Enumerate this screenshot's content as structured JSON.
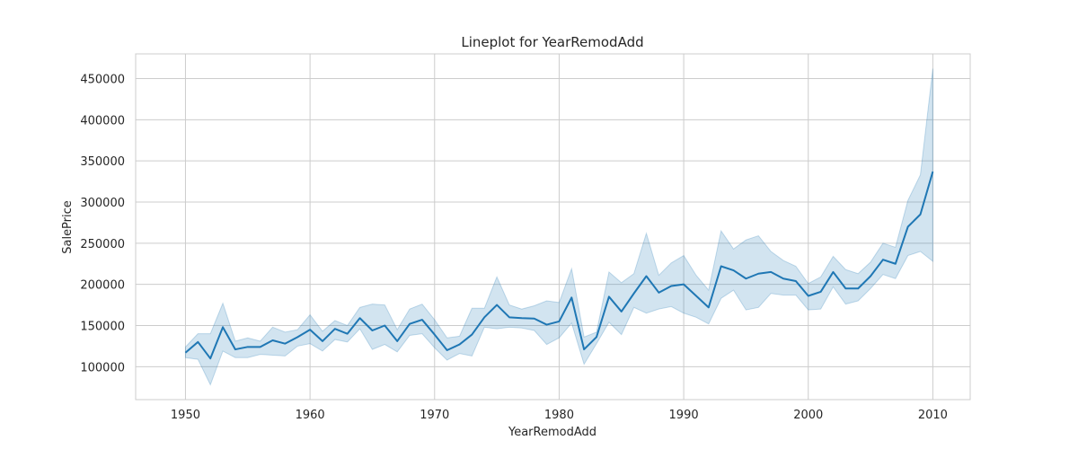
{
  "chart_data": {
    "type": "line",
    "title": "Lineplot for YearRemodAdd",
    "xlabel": "YearRemodAdd",
    "ylabel": "SalePrice",
    "xlim": [
      1946,
      2013
    ],
    "ylim": [
      60000,
      480000
    ],
    "x_ticks": [
      1950,
      1960,
      1970,
      1980,
      1990,
      2000,
      2010
    ],
    "y_ticks": [
      100000,
      150000,
      200000,
      250000,
      300000,
      350000,
      400000,
      450000
    ],
    "grid": true,
    "colors": {
      "line": "#1f77b4",
      "band": "#1f77b4",
      "grid": "#cccccc",
      "spine": "#cccccc",
      "text": "#262626"
    },
    "x": [
      1950,
      1951,
      1952,
      1953,
      1954,
      1955,
      1956,
      1957,
      1958,
      1959,
      1960,
      1961,
      1962,
      1963,
      1964,
      1965,
      1966,
      1967,
      1968,
      1969,
      1970,
      1971,
      1972,
      1973,
      1974,
      1975,
      1976,
      1977,
      1978,
      1979,
      1980,
      1981,
      1982,
      1983,
      1984,
      1985,
      1986,
      1987,
      1988,
      1989,
      1990,
      1991,
      1992,
      1993,
      1994,
      1995,
      1996,
      1997,
      1998,
      1999,
      2000,
      2001,
      2002,
      2003,
      2004,
      2005,
      2006,
      2007,
      2008,
      2009,
      2010
    ],
    "series": [
      {
        "values": [
          117000,
          130000,
          110000,
          148000,
          121000,
          124000,
          124000,
          132000,
          128000,
          136000,
          145000,
          131000,
          146000,
          140000,
          159000,
          144000,
          150000,
          131000,
          152000,
          157000,
          139000,
          120000,
          127000,
          139000,
          160000,
          175000,
          160000,
          159000,
          158500,
          151000,
          155000,
          184000,
          121000,
          136000,
          185000,
          167000,
          189000,
          210000,
          190000,
          198000,
          200000,
          186000,
          172000,
          222000,
          217000,
          207000,
          213000,
          215000,
          207000,
          204000,
          186000,
          191000,
          215000,
          195000,
          195000,
          210000,
          230000,
          225000,
          270000,
          285000,
          337000
        ],
        "lower": [
          111000,
          109000,
          78000,
          119000,
          111000,
          111000,
          115000,
          114000,
          113000,
          125000,
          128000,
          119000,
          133000,
          130000,
          146000,
          121000,
          127000,
          118000,
          138000,
          140000,
          123000,
          108000,
          116000,
          113000,
          148000,
          146000,
          148000,
          147000,
          144000,
          127000,
          135000,
          153000,
          103000,
          128000,
          154000,
          139000,
          172000,
          165000,
          170000,
          173000,
          165000,
          160000,
          152000,
          183000,
          193000,
          169000,
          172000,
          189000,
          187000,
          187000,
          169000,
          170000,
          197000,
          176000,
          180000,
          195000,
          212000,
          207000,
          235000,
          240000,
          228000
        ],
        "upper": [
          124000,
          140000,
          140000,
          177000,
          131000,
          135000,
          131000,
          148000,
          142000,
          145000,
          163000,
          143000,
          156000,
          150000,
          172000,
          176000,
          175000,
          145000,
          170000,
          176000,
          157000,
          135000,
          137000,
          171000,
          171000,
          209000,
          175000,
          170000,
          174000,
          180000,
          178000,
          219000,
          136000,
          142000,
          215000,
          202000,
          213000,
          262000,
          211000,
          226000,
          235000,
          211000,
          193000,
          265000,
          243000,
          254000,
          259000,
          240000,
          229000,
          222000,
          201000,
          209000,
          234000,
          218000,
          213000,
          227000,
          250000,
          245000,
          302000,
          333000,
          462000
        ]
      }
    ]
  }
}
